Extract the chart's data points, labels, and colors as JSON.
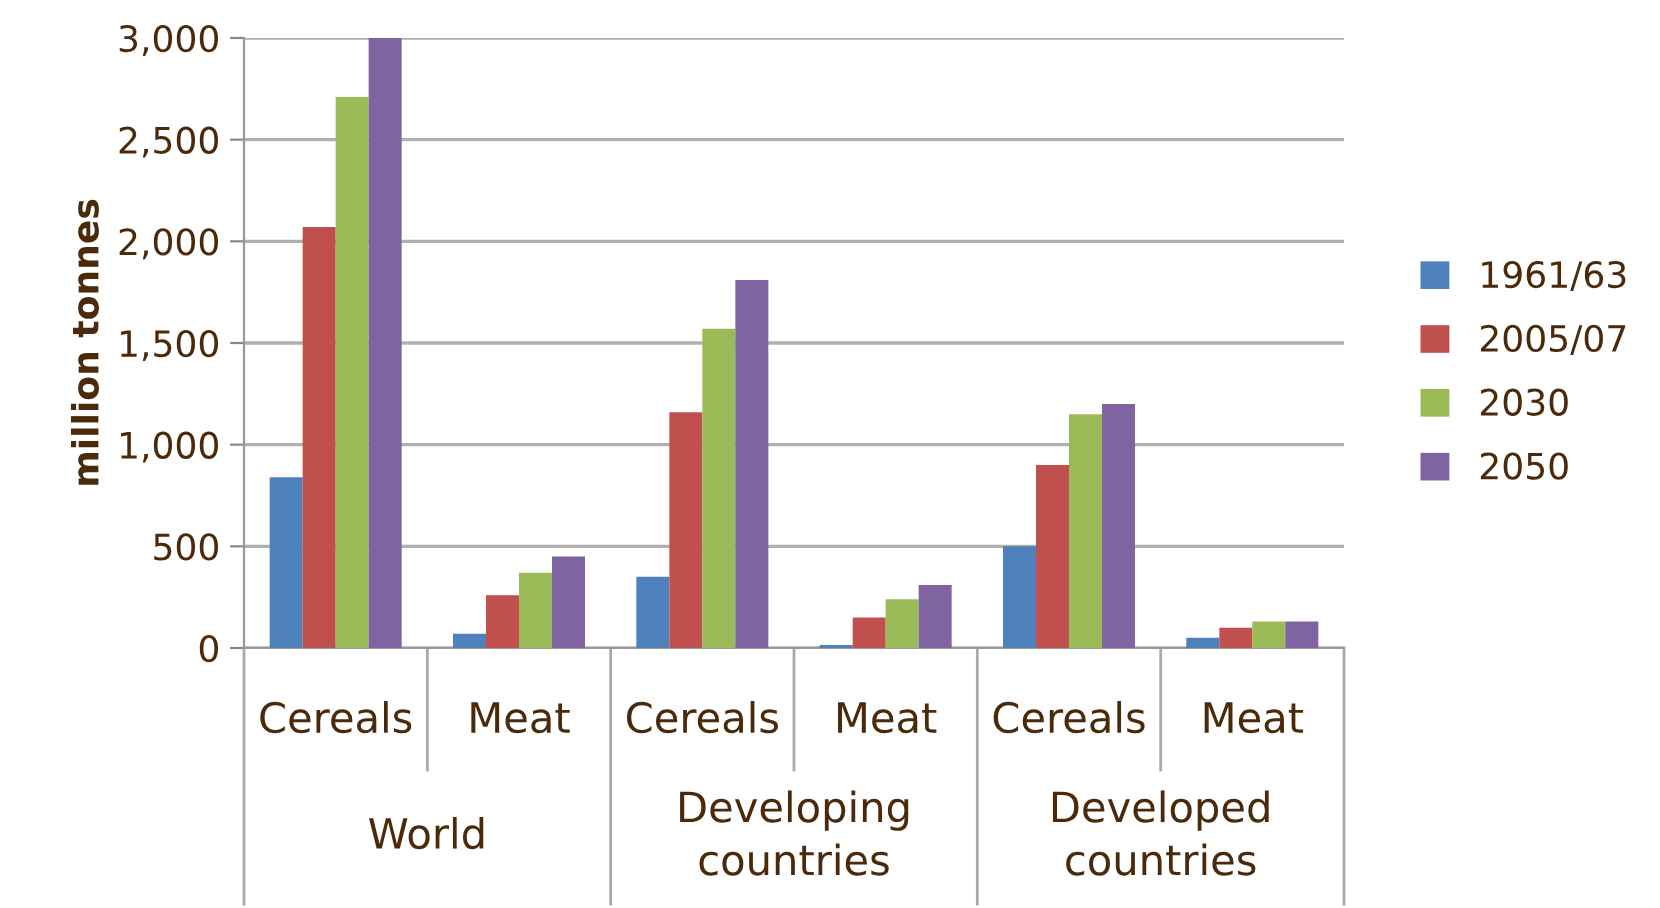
{
  "chart_data": {
    "type": "bar",
    "ylabel": "million tonnes",
    "categories": [
      "Cereals",
      "Meat",
      "Cereals",
      "Meat",
      "Cereals",
      "Meat"
    ],
    "annotations": [
      "World",
      "Developing\ncountries",
      "Developed\ncountries"
    ],
    "series": [
      {
        "name": "1961/63",
        "color": "#4f81bd",
        "values": [
          840,
          70,
          350,
          15,
          500,
          50
        ]
      },
      {
        "name": "2005/07",
        "color": "#c0504d",
        "values": [
          2070,
          260,
          1160,
          150,
          900,
          100
        ]
      },
      {
        "name": "2030",
        "color": "#9bbb59",
        "values": [
          2710,
          370,
          1570,
          240,
          1150,
          130
        ]
      },
      {
        "name": "2050",
        "color": "#8064a2",
        "values": [
          3000,
          450,
          1810,
          310,
          1200,
          130
        ]
      }
    ],
    "ylim": [
      0,
      3000
    ],
    "yticks": [
      0,
      {
        "value": 500,
        "label": "500"
      },
      {
        "value": 1000,
        "label": "1,000"
      },
      {
        "value": 1500,
        "label": "1,500"
      },
      {
        "value": 2000,
        "label": "2,000"
      },
      {
        "value": 2500,
        "label": "2,500"
      },
      {
        "value": 3000,
        "label": "3,000"
      }
    ],
    "grid": "y",
    "legend": "right"
  }
}
